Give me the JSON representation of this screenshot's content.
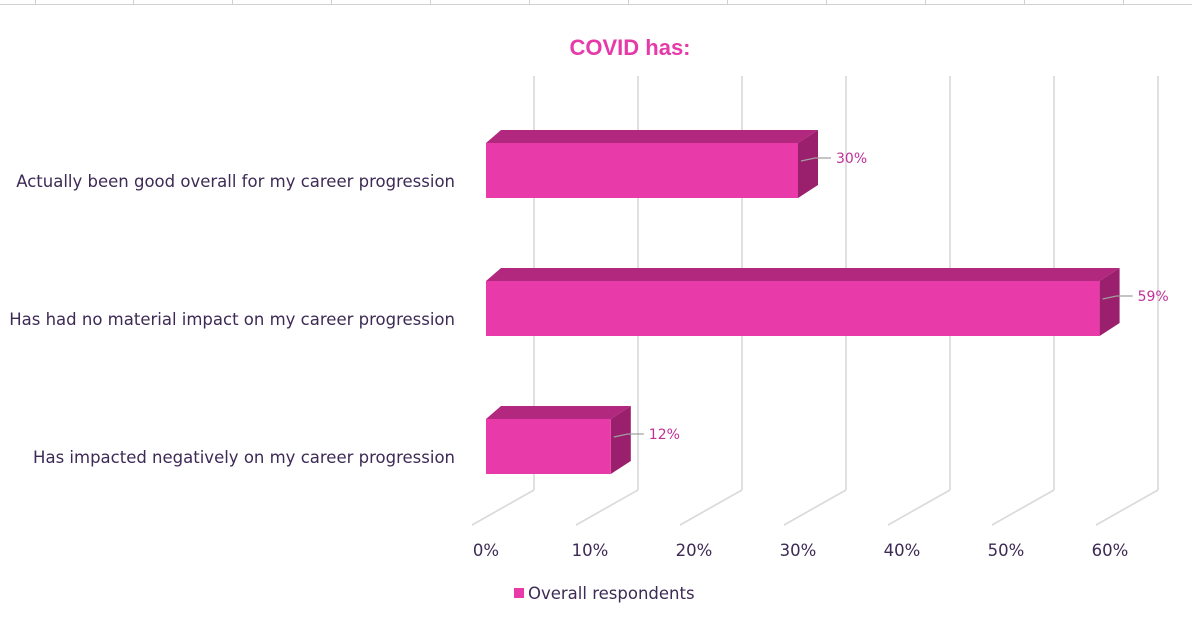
{
  "chart_data": {
    "type": "bar",
    "orientation": "horizontal",
    "style": "3d",
    "title": "COVID has:",
    "categories": [
      "Actually been good overall for my career progression",
      "Has had no material impact on my career progression",
      "Has impacted negatively on my career progression"
    ],
    "series": [
      {
        "name": "Overall respondents",
        "values": [
          30,
          59,
          12
        ],
        "color": "#e83aa8"
      }
    ],
    "data_labels": [
      "30%",
      "59%",
      "12%"
    ],
    "x_ticks": [
      "0%",
      "10%",
      "20%",
      "30%",
      "40%",
      "50%",
      "60%"
    ],
    "xlim": [
      0,
      60
    ],
    "grid": true,
    "legend_position": "bottom"
  },
  "colors": {
    "bar_front": "#e83aa8",
    "bar_top": "#b3287f",
    "bar_side": "#9a1f6d",
    "title": "#e63aa9",
    "text": "#3d2a55",
    "gridline": "#d9d9d9"
  }
}
